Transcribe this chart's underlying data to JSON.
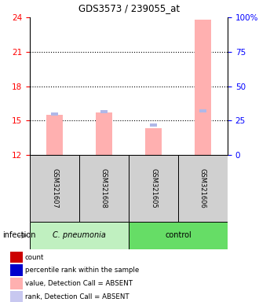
{
  "title": "GDS3573 / 239055_at",
  "samples": [
    "GSM321607",
    "GSM321608",
    "GSM321605",
    "GSM321606"
  ],
  "ylim_left": [
    12,
    24
  ],
  "ylim_right": [
    0,
    100
  ],
  "yticks_left": [
    12,
    15,
    18,
    21,
    24
  ],
  "yticks_right": [
    0,
    25,
    50,
    75,
    100
  ],
  "ytick_labels_right": [
    "0",
    "25",
    "50",
    "75",
    "100%"
  ],
  "dotted_lines": [
    15,
    18,
    21
  ],
  "bar_values": [
    15.5,
    15.7,
    14.3,
    23.8
  ],
  "rank_values": [
    15.55,
    15.75,
    14.6,
    15.85
  ],
  "bar_color": "#ffb0b0",
  "rank_color": "#b0b8e8",
  "bar_bottom": 12,
  "legend_items": [
    {
      "color": "#cc0000",
      "label": "count"
    },
    {
      "color": "#0000cc",
      "label": "percentile rank within the sample"
    },
    {
      "color": "#ffb0b0",
      "label": "value, Detection Call = ABSENT"
    },
    {
      "color": "#c8c8f0",
      "label": "rank, Detection Call = ABSENT"
    }
  ],
  "group_names": [
    "C. pneumonia",
    "control"
  ],
  "group_fill_colors": [
    "#c0f0c0",
    "#66dd66"
  ],
  "sample_box_color": "#d0d0d0"
}
